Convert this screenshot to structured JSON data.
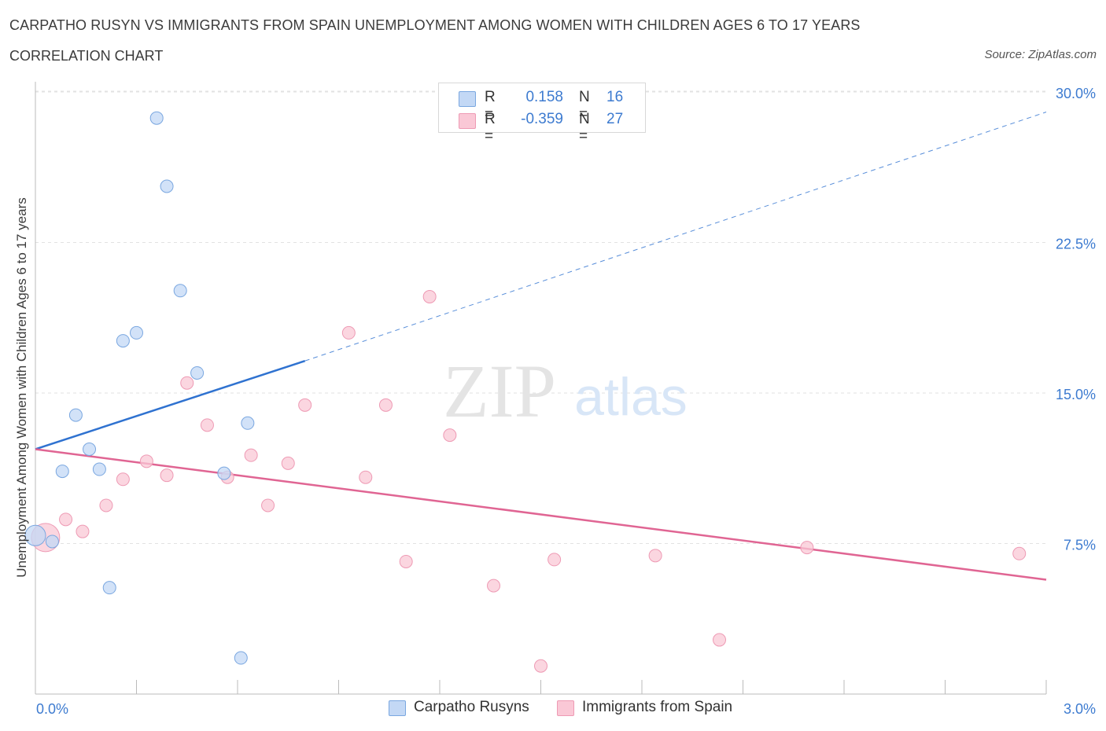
{
  "header": {
    "title": "CARPATHO RUSYN VS IMMIGRANTS FROM SPAIN UNEMPLOYMENT AMONG WOMEN WITH CHILDREN AGES 6 TO 17 YEARS",
    "subtitle": "CORRELATION CHART",
    "source": "Source: ZipAtlas.com"
  },
  "watermark": {
    "zip": "ZIP",
    "atlas": "atlas"
  },
  "legend": {
    "rows": [
      {
        "r_label": "R =",
        "r_value": "0.158",
        "n_label": "N =",
        "n_value": "16"
      },
      {
        "r_label": "R =",
        "r_value": "-0.359",
        "n_label": "N =",
        "n_value": "27"
      }
    ]
  },
  "colors": {
    "blue_fill": "#c3d8f5",
    "blue_stroke": "#7aa7e0",
    "blue_line": "#2f72d0",
    "pink_fill": "#fac8d6",
    "pink_stroke": "#ee9ab4",
    "pink_line": "#e06593",
    "tick_text": "#3d7bd0",
    "grid": "#e2e2e2"
  },
  "chart_data": {
    "type": "scatter",
    "title": "CARPATHO RUSYN VS IMMIGRANTS FROM SPAIN UNEMPLOYMENT AMONG WOMEN WITH CHILDREN AGES 6 TO 17 YEARS",
    "xlabel": "",
    "ylabel": "Unemployment Among Women with Children Ages 6 to 17 years",
    "xlim": [
      0,
      3.0
    ],
    "ylim": [
      0,
      30.0
    ],
    "x_tick_labels": [
      "0.0%",
      "3.0%"
    ],
    "y_ticks": [
      7.5,
      15.0,
      22.5,
      30.0
    ],
    "y_tick_labels": [
      "7.5%",
      "15.0%",
      "22.5%",
      "30.0%"
    ],
    "grid": true,
    "legend_placement": "top-center",
    "series": [
      {
        "name": "Carpatho Rusyns",
        "color": "#7aa7e0",
        "points": [
          {
            "x": 0.0,
            "y": 7.9,
            "size": "large"
          },
          {
            "x": 0.05,
            "y": 7.6
          },
          {
            "x": 0.08,
            "y": 11.1
          },
          {
            "x": 0.12,
            "y": 13.9
          },
          {
            "x": 0.16,
            "y": 12.2
          },
          {
            "x": 0.19,
            "y": 11.2
          },
          {
            "x": 0.22,
            "y": 5.3
          },
          {
            "x": 0.26,
            "y": 17.6
          },
          {
            "x": 0.3,
            "y": 18.0
          },
          {
            "x": 0.36,
            "y": 28.7
          },
          {
            "x": 0.39,
            "y": 25.3
          },
          {
            "x": 0.43,
            "y": 20.1
          },
          {
            "x": 0.48,
            "y": 16.0
          },
          {
            "x": 0.56,
            "y": 11.0
          },
          {
            "x": 0.61,
            "y": 1.8
          },
          {
            "x": 0.63,
            "y": 13.5
          }
        ],
        "trend": {
          "x0": 0.0,
          "y0": 12.2,
          "x1": 0.8,
          "y1": 16.6,
          "dashed_to_x": 3.0,
          "dashed_to_y": 29.0
        }
      },
      {
        "name": "Immigrants from Spain",
        "color": "#ee9ab4",
        "points": [
          {
            "x": 0.03,
            "y": 7.8,
            "size": "xlarge"
          },
          {
            "x": 0.09,
            "y": 8.7
          },
          {
            "x": 0.14,
            "y": 8.1
          },
          {
            "x": 0.21,
            "y": 9.4
          },
          {
            "x": 0.26,
            "y": 10.7
          },
          {
            "x": 0.33,
            "y": 11.6
          },
          {
            "x": 0.39,
            "y": 10.9
          },
          {
            "x": 0.45,
            "y": 15.5
          },
          {
            "x": 0.51,
            "y": 13.4
          },
          {
            "x": 0.57,
            "y": 10.8
          },
          {
            "x": 0.64,
            "y": 11.9
          },
          {
            "x": 0.69,
            "y": 9.4
          },
          {
            "x": 0.75,
            "y": 11.5
          },
          {
            "x": 0.8,
            "y": 14.4
          },
          {
            "x": 0.93,
            "y": 18.0
          },
          {
            "x": 0.98,
            "y": 10.8
          },
          {
            "x": 1.04,
            "y": 14.4
          },
          {
            "x": 1.1,
            "y": 6.6
          },
          {
            "x": 1.17,
            "y": 19.8
          },
          {
            "x": 1.23,
            "y": 12.9
          },
          {
            "x": 1.36,
            "y": 5.4
          },
          {
            "x": 1.5,
            "y": 1.4
          },
          {
            "x": 1.54,
            "y": 6.7
          },
          {
            "x": 1.84,
            "y": 6.9
          },
          {
            "x": 2.03,
            "y": 2.7
          },
          {
            "x": 2.29,
            "y": 7.3
          },
          {
            "x": 2.92,
            "y": 7.0
          }
        ],
        "trend": {
          "x0": 0.0,
          "y0": 12.2,
          "x1": 3.0,
          "y1": 5.7
        }
      }
    ]
  },
  "bottom_legend": {
    "items": [
      {
        "label": "Carpatho Rusyns"
      },
      {
        "label": "Immigrants from Spain"
      }
    ]
  }
}
